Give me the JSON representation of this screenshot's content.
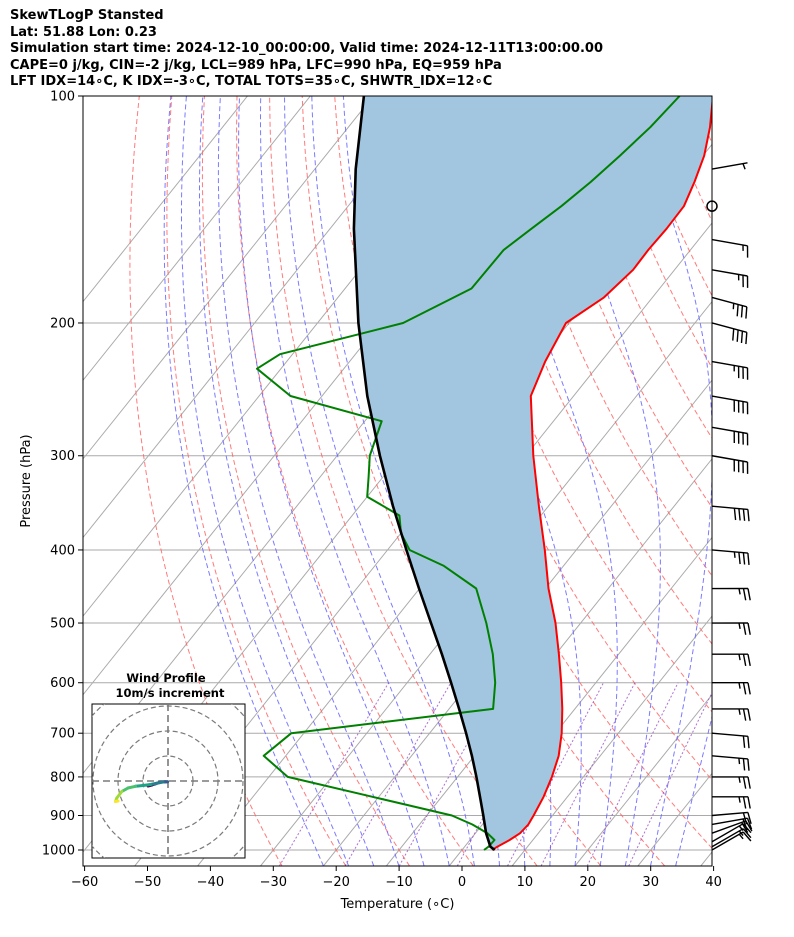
{
  "header": {
    "line1": "SkewTLogP Stansted",
    "line2": "Lat: 51.88   Lon: 0.23",
    "line3": "Simulation start time: 2024-12-10_00:00:00, Valid time: 2024-12-11T13:00:00.00",
    "line4": "CAPE=0 j/kg, CIN=-2 j/kg, LCL=989 hPa, LFC=990 hPa, EQ=959 hPa",
    "line5": "LFT IDX=14∘C, K IDX=-3∘C, TOTAL TOTS=35∘C, SHWTR_IDX=12∘C"
  },
  "chart_data": {
    "type": "skew-t",
    "xlabel": "Temperature (∘C)",
    "ylabel": "Pressure (hPa)",
    "xlim": [
      -60,
      40
    ],
    "ylim": [
      1050,
      100
    ],
    "x_ticks": [
      -60,
      -50,
      -40,
      -30,
      -20,
      -10,
      0,
      10,
      20,
      30,
      40
    ],
    "x_tick_labels": [
      "−60",
      "−50",
      "−40",
      "−30",
      "−20",
      "−10",
      "0",
      "10",
      "20",
      "30",
      "40"
    ],
    "y_ticks": [
      100,
      200,
      300,
      400,
      500,
      600,
      700,
      800,
      900,
      1000
    ],
    "y_tick_labels": [
      "100",
      "200",
      "300",
      "400",
      "500",
      "600",
      "700",
      "800",
      "900",
      "1000"
    ],
    "grid": true,
    "colors": {
      "temperature": "#ff0000",
      "dewpoint": "#008000",
      "parcel": "#000000",
      "shading": "#a2c6df",
      "dry_adiabat": "#ff6464",
      "moist_adiabat": "#6464ff",
      "mixing_ratio": "#9a4fc6",
      "isotherm": "#aaaaaa"
    },
    "series": [
      {
        "key": "temperature",
        "points": [
          [
            1000,
            4.8
          ],
          [
            990,
            5.2
          ],
          [
            970,
            6.3
          ],
          [
            950,
            7.1
          ],
          [
            925,
            7.3
          ],
          [
            900,
            7.0
          ],
          [
            850,
            6.2
          ],
          [
            800,
            5.0
          ],
          [
            750,
            3.4
          ],
          [
            700,
            1.0
          ],
          [
            650,
            -2.0
          ],
          [
            600,
            -5.5
          ],
          [
            550,
            -9.5
          ],
          [
            500,
            -14.0
          ],
          [
            450,
            -19.5
          ],
          [
            400,
            -25.0
          ],
          [
            350,
            -31.5
          ],
          [
            300,
            -38.8
          ],
          [
            250,
            -46.8
          ],
          [
            225,
            -48.9
          ],
          [
            200,
            -50.5
          ],
          [
            185,
            -47.7
          ],
          [
            170,
            -46.6
          ],
          [
            160,
            -46.7
          ],
          [
            150,
            -46.5
          ],
          [
            140,
            -46.6
          ],
          [
            130,
            -48.0
          ],
          [
            120,
            -49.8
          ],
          [
            110,
            -52.5
          ],
          [
            100,
            -56.0
          ]
        ]
      },
      {
        "key": "dewpoint",
        "points": [
          [
            1000,
            3.5
          ],
          [
            990,
            3.8
          ],
          [
            970,
            3.9
          ],
          [
            950,
            1.9
          ],
          [
            925,
            -1.6
          ],
          [
            900,
            -6.0
          ],
          [
            850,
            -21.0
          ],
          [
            800,
            -37.0
          ],
          [
            750,
            -43.5
          ],
          [
            700,
            -42.0
          ],
          [
            650,
            -13.0
          ],
          [
            600,
            -16.0
          ],
          [
            550,
            -20.0
          ],
          [
            500,
            -25.0
          ],
          [
            450,
            -31.0
          ],
          [
            420,
            -39.0
          ],
          [
            400,
            -46.5
          ],
          [
            380,
            -50.0
          ],
          [
            360,
            -52.5
          ],
          [
            340,
            -60.0
          ],
          [
            320,
            -62.3
          ],
          [
            300,
            -64.8
          ],
          [
            270,
            -67.3
          ],
          [
            250,
            -85.0
          ],
          [
            230,
            -93.8
          ],
          [
            220,
            -92.0
          ],
          [
            200,
            -76.4
          ],
          [
            180,
            -69.9
          ],
          [
            160,
            -69.7
          ],
          [
            150,
            -68.0
          ],
          [
            140,
            -66.1
          ],
          [
            130,
            -64.5
          ],
          [
            120,
            -63.2
          ],
          [
            110,
            -62.0
          ],
          [
            100,
            -61.3
          ]
        ]
      },
      {
        "key": "parcel",
        "points": [
          [
            1000,
            5.2
          ],
          [
            990,
            4.1
          ],
          [
            950,
            1.7
          ],
          [
            900,
            -1.0
          ],
          [
            850,
            -3.9
          ],
          [
            800,
            -7.0
          ],
          [
            750,
            -10.4
          ],
          [
            700,
            -14.2
          ],
          [
            650,
            -18.4
          ],
          [
            600,
            -23.0
          ],
          [
            550,
            -28.1
          ],
          [
            500,
            -33.8
          ],
          [
            450,
            -40.1
          ],
          [
            400,
            -47.0
          ],
          [
            350,
            -54.7
          ],
          [
            300,
            -63.2
          ],
          [
            250,
            -72.8
          ],
          [
            200,
            -83.5
          ],
          [
            150,
            -96.2
          ],
          [
            125,
            -103.5
          ],
          [
            100,
            -111.5
          ]
        ]
      }
    ],
    "wind_barbs": [
      {
        "pressure": 1000,
        "speed_kt": 15,
        "direction": 240
      },
      {
        "pressure": 990,
        "speed_kt": 15,
        "direction": 240
      },
      {
        "pressure": 975,
        "speed_kt": 15,
        "direction": 240
      },
      {
        "pressure": 950,
        "speed_kt": 20,
        "direction": 250
      },
      {
        "pressure": 925,
        "speed_kt": 20,
        "direction": 260
      },
      {
        "pressure": 900,
        "speed_kt": 20,
        "direction": 265
      },
      {
        "pressure": 850,
        "speed_kt": 25,
        "direction": 270
      },
      {
        "pressure": 800,
        "speed_kt": 25,
        "direction": 270
      },
      {
        "pressure": 750,
        "speed_kt": 25,
        "direction": 275
      },
      {
        "pressure": 700,
        "speed_kt": 20,
        "direction": 275
      },
      {
        "pressure": 650,
        "speed_kt": 25,
        "direction": 270
      },
      {
        "pressure": 600,
        "speed_kt": 25,
        "direction": 270
      },
      {
        "pressure": 550,
        "speed_kt": 25,
        "direction": 270
      },
      {
        "pressure": 500,
        "speed_kt": 25,
        "direction": 270
      },
      {
        "pressure": 450,
        "speed_kt": 25,
        "direction": 270
      },
      {
        "pressure": 400,
        "speed_kt": 35,
        "direction": 275
      },
      {
        "pressure": 350,
        "speed_kt": 40,
        "direction": 275
      },
      {
        "pressure": 300,
        "speed_kt": 40,
        "direction": 280
      },
      {
        "pressure": 275,
        "speed_kt": 40,
        "direction": 280
      },
      {
        "pressure": 250,
        "speed_kt": 40,
        "direction": 280
      },
      {
        "pressure": 225,
        "speed_kt": 35,
        "direction": 280
      },
      {
        "pressure": 200,
        "speed_kt": 40,
        "direction": 285
      },
      {
        "pressure": 185,
        "speed_kt": 35,
        "direction": 285
      },
      {
        "pressure": 170,
        "speed_kt": 25,
        "direction": 280
      },
      {
        "pressure": 155,
        "speed_kt": 15,
        "direction": 280
      },
      {
        "pressure": 140,
        "speed_kt": 0,
        "direction": 0
      },
      {
        "pressure": 125,
        "speed_kt": 5,
        "direction": 260
      }
    ],
    "hodograph": {
      "title": "Wind Profile",
      "subtitle": "10m/s increment",
      "ring_step_ms": 10,
      "points": [
        [
          -8,
          -2
        ],
        [
          -6.5,
          -1.6
        ],
        [
          -5,
          -1.1
        ],
        [
          -3,
          -0.4
        ],
        [
          -1,
          -0.3
        ],
        [
          -0.2,
          -0.3
        ],
        [
          -2,
          -0.4
        ],
        [
          -4,
          -0.8
        ],
        [
          -7,
          -1.4
        ],
        [
          -10,
          -1.8
        ],
        [
          -13,
          -2.1
        ],
        [
          -16,
          -2.8
        ],
        [
          -18.5,
          -4.2
        ],
        [
          -20.5,
          -6.8
        ],
        [
          -21,
          -8.2
        ],
        [
          -20,
          -8.0
        ]
      ]
    }
  }
}
